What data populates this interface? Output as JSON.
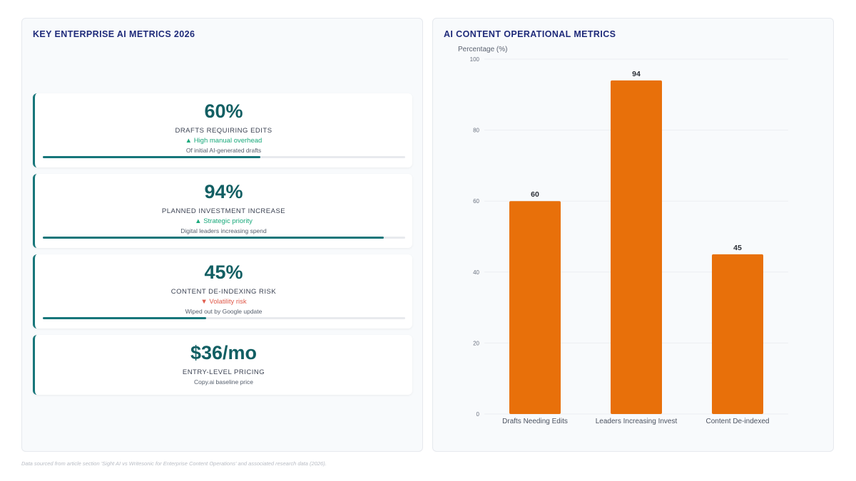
{
  "left_panel": {
    "title": "KEY ENTERPRISE AI METRICS 2026",
    "cards": [
      {
        "value": "60%",
        "label": "DRAFTS REQUIRING EDITS",
        "trend": "▲ High manual overhead",
        "trend_direction": "up",
        "note": "Of initial AI-generated drafts",
        "progress": 0.6
      },
      {
        "value": "94%",
        "label": "PLANNED INVESTMENT INCREASE",
        "trend": "▲ Strategic priority",
        "trend_direction": "up",
        "note": "Digital leaders increasing spend",
        "progress": 0.94
      },
      {
        "value": "45%",
        "label": "CONTENT DE-INDEXING RISK",
        "trend": "▼ Volatility risk",
        "trend_direction": "down",
        "note": "Wiped out by Google update",
        "progress": 0.45
      },
      {
        "value": "$36/mo",
        "label": "ENTRY-LEVEL PRICING",
        "note": "Copy.ai baseline price"
      }
    ]
  },
  "right_panel": {
    "title": "AI CONTENT OPERATIONAL METRICS"
  },
  "chart_data": {
    "type": "bar",
    "categories": [
      "Drafts Needing Edits",
      "Leaders Increasing Invest",
      "Content De-indexed"
    ],
    "values": [
      60,
      94,
      45
    ],
    "ylabel": "Percentage (%)",
    "xlabel": "",
    "ylim": [
      0,
      100
    ],
    "yticks": [
      0,
      20,
      40,
      60,
      80,
      100
    ],
    "data_labels": true,
    "grid": true,
    "bar_color": "#e8700a"
  },
  "colors": {
    "accent": "#17767a",
    "title": "#1f2b7a",
    "up": "#19a97b",
    "down": "#e05a4b"
  },
  "footer": "Data sourced from article section 'Sight AI vs Writesonic for Enterprise Content Operations' and associated research data (2026)."
}
